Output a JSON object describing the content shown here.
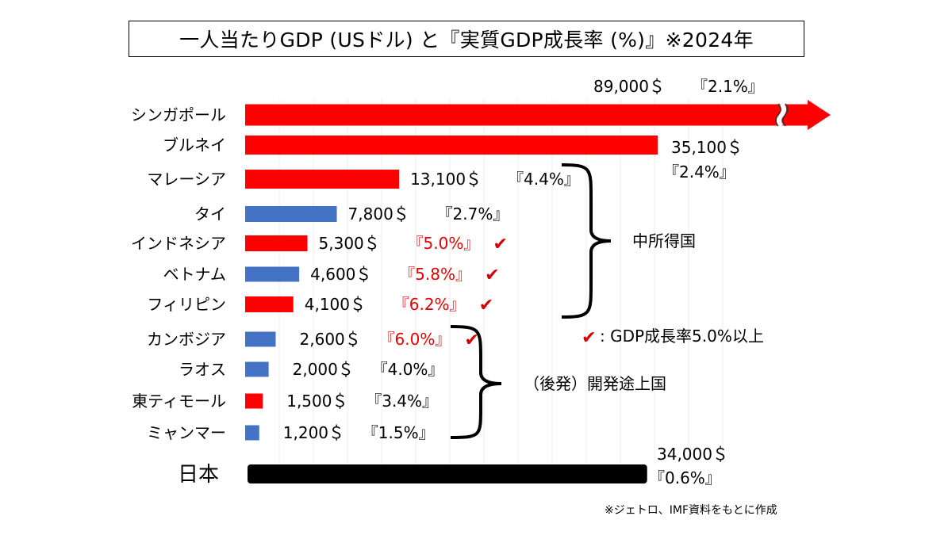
{
  "title": "一人当たりGDP (USドル) と『実質GDP成長率 (%)』※2024年",
  "chart_data": {
    "type": "bar",
    "orientation": "horizontal",
    "title": "一人当たりGDP (USドル) と『実質GDP成長率 (%)』※2024年",
    "unit": "$",
    "axis_broken": true,
    "categories": [
      "シンガポール",
      "ブルネイ",
      "マレーシア",
      "タイ",
      "インドネシア",
      "ベトナム",
      "フィリピン",
      "カンボジア",
      "ラオス",
      "東ティモール",
      "ミャンマー",
      "日本"
    ],
    "values": [
      89000,
      35100,
      13100,
      7800,
      5300,
      4600,
      4100,
      2600,
      2000,
      1500,
      1200,
      34000
    ],
    "growth_labels": [
      "『2.1%』",
      "『2.4%』",
      "『4.4%』",
      "『2.7%』",
      "『5.0%』",
      "『5.8%』",
      "『6.2%』",
      "『6.0%』",
      "『4.0%』",
      "『3.4%』",
      "『1.5%』",
      "『0.6%』"
    ],
    "value_labels": [
      "89,000＄",
      "35,100＄",
      "13,100＄",
      "7,800＄",
      "5,300＄",
      "4,600＄",
      "4,100＄",
      "2,600＄",
      "2,000＄",
      "1,500＄",
      "1,200＄",
      "34,000＄"
    ],
    "bar_colors": [
      "#ff0000",
      "#ff0000",
      "#ff0000",
      "#4472c4",
      "#ff0000",
      "#4472c4",
      "#ff0000",
      "#4472c4",
      "#4472c4",
      "#ff0000",
      "#4472c4",
      "#000000"
    ],
    "highlight_growth": [
      false,
      false,
      false,
      false,
      true,
      true,
      true,
      true,
      false,
      false,
      false,
      false
    ],
    "groups": [
      {
        "label": "中所得国",
        "from": "マレーシア",
        "to": "フィリピン"
      },
      {
        "label": "（後発）開発途上国",
        "from": "カンボジア",
        "to": "ミャンマー"
      }
    ],
    "legend": {
      "mark": "✔",
      "text": ": GDP成長率5.0%以上",
      "color": "#d40000"
    },
    "colors": {
      "red": "#ff0000",
      "blue": "#4472c4",
      "black": "#000000",
      "highlight": "#e60000"
    }
  },
  "source_note": "※ジェトロ、IMF資料をもとに作成"
}
